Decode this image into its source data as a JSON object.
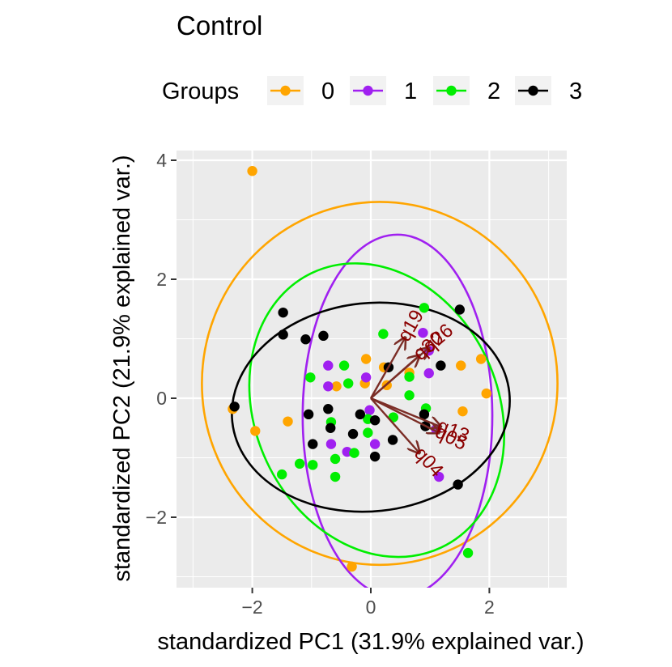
{
  "chart_data": {
    "type": "scatter",
    "title": "Control",
    "xlabel": "standardized PC1 (31.9% explained var.)",
    "ylabel": "standardized PC2 (21.9% explained var.)",
    "xlim": [
      -3.3,
      3.3
    ],
    "ylim": [
      -3.25,
      4.15
    ],
    "x_ticks": [
      -2,
      0,
      2
    ],
    "y_ticks": [
      -2,
      0,
      2,
      4
    ],
    "x_tick_labels": [
      "−2",
      "0",
      "2"
    ],
    "y_tick_labels": [
      "−2",
      "0",
      "2",
      "4"
    ],
    "grid": true,
    "legend": {
      "title": "Groups",
      "position": "top",
      "entries": [
        {
          "label": "0",
          "color": "#FFA500"
        },
        {
          "label": "1",
          "color": "#A020F0"
        },
        {
          "label": "2",
          "color": "#00EE00"
        },
        {
          "label": "3",
          "color": "#000000"
        }
      ]
    },
    "series": [
      {
        "name": "0",
        "color": "#FFA500",
        "points": [
          [
            -2.0,
            3.82
          ],
          [
            -2.33,
            -0.18
          ],
          [
            -1.95,
            -0.55
          ],
          [
            -1.4,
            -0.39
          ],
          [
            -0.58,
            0.2
          ],
          [
            -0.08,
            0.66
          ],
          [
            -0.1,
            0.25
          ],
          [
            0.27,
            0.22
          ],
          [
            1.52,
            0.55
          ],
          [
            1.55,
            -0.22
          ],
          [
            1.86,
            0.66
          ],
          [
            1.95,
            0.08
          ],
          [
            0.22,
            0.52
          ],
          [
            0.65,
            0.43
          ],
          [
            -0.32,
            -2.83
          ]
        ],
        "ellipse": {
          "cx": 0.15,
          "cy": 0.25,
          "rx": 3.0,
          "ry": 3.05,
          "angle": 0
        }
      },
      {
        "name": "1",
        "color": "#A020F0",
        "points": [
          [
            -0.72,
            0.55
          ],
          [
            -0.72,
            0.2
          ],
          [
            -0.08,
            0.35
          ],
          [
            -0.67,
            -0.77
          ],
          [
            -0.4,
            -0.9
          ],
          [
            0.07,
            -0.77
          ],
          [
            0.88,
            1.1
          ],
          [
            0.98,
            0.42
          ],
          [
            1.1,
            -0.52
          ],
          [
            1.15,
            -1.32
          ],
          [
            0.98,
            0.8
          ],
          [
            -0.02,
            -0.2
          ]
        ],
        "ellipse": {
          "cx": 0.45,
          "cy": -0.3,
          "rx": 1.6,
          "ry": 3.05,
          "angle": 0
        }
      },
      {
        "name": "2",
        "color": "#00EE00",
        "points": [
          [
            -1.02,
            0.35
          ],
          [
            -0.45,
            0.55
          ],
          [
            -0.38,
            0.25
          ],
          [
            0.21,
            1.08
          ],
          [
            0.9,
            1.52
          ],
          [
            0.65,
            0.36
          ],
          [
            -0.67,
            -0.4
          ],
          [
            -1.2,
            -1.1
          ],
          [
            -1.5,
            -1.28
          ],
          [
            -0.98,
            -1.12
          ],
          [
            -0.6,
            -1.02
          ],
          [
            -0.6,
            -1.32
          ],
          [
            -0.28,
            -0.92
          ],
          [
            -0.05,
            -0.58
          ],
          [
            0.38,
            -0.32
          ],
          [
            0.65,
            0.05
          ],
          [
            0.93,
            -0.17
          ],
          [
            1.64,
            -2.6
          ],
          [
            -0.05,
            -0.35
          ]
        ],
        "ellipse": {
          "cx": 0.1,
          "cy": -0.2,
          "rx": 2.05,
          "ry": 2.55,
          "angle": -25
        }
      },
      {
        "name": "3",
        "color": "#000000",
        "points": [
          [
            -2.3,
            -0.14
          ],
          [
            -1.48,
            1.44
          ],
          [
            -1.48,
            1.07
          ],
          [
            -1.1,
            0.99
          ],
          [
            -0.8,
            1.05
          ],
          [
            -0.72,
            -0.18
          ],
          [
            -1.05,
            -0.27
          ],
          [
            -0.98,
            -0.77
          ],
          [
            -0.68,
            -0.5
          ],
          [
            -0.3,
            -0.6
          ],
          [
            -0.18,
            -0.27
          ],
          [
            0.07,
            -0.37
          ],
          [
            0.37,
            -0.7
          ],
          [
            0.07,
            -0.98
          ],
          [
            0.3,
            0.52
          ],
          [
            0.9,
            -0.27
          ],
          [
            0.92,
            -0.47
          ],
          [
            1.18,
            0.55
          ],
          [
            1.47,
            -1.45
          ],
          [
            1.5,
            1.49
          ]
        ],
        "ellipse": {
          "cx": 0.0,
          "cy": -0.15,
          "rx": 2.35,
          "ry": 1.75,
          "angle": -6
        }
      }
    ],
    "arrows": [
      {
        "label": "q19",
        "x": 0.58,
        "y": 1.02
      },
      {
        "label": "q30",
        "x": 0.82,
        "y": 0.72
      },
      {
        "label": "q26",
        "x": 0.98,
        "y": 0.85
      },
      {
        "label": "q13",
        "x": 1.18,
        "y": -0.48
      },
      {
        "label": "q05",
        "x": 1.15,
        "y": -0.58
      },
      {
        "label": "q04",
        "x": 0.82,
        "y": -0.92
      }
    ],
    "arrow_color": "#7B2D26",
    "arrow_label_color": "#8B0000"
  }
}
